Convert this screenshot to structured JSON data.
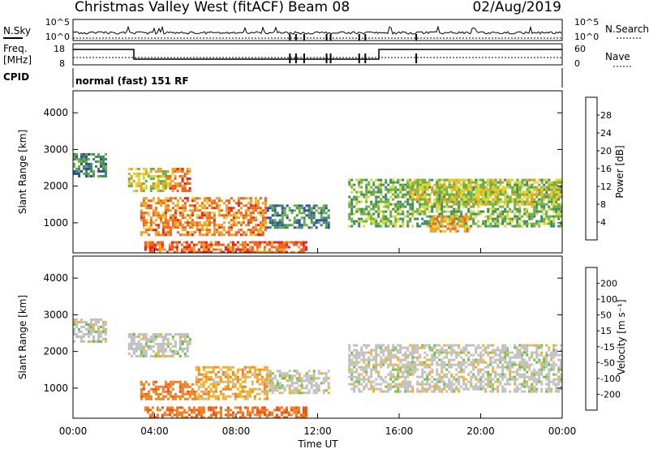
{
  "header": {
    "title": "Christmas Valley West (fitACF)",
    "beam": "Beam 08",
    "date": "02/Aug/2019"
  },
  "side_labels": {
    "nsky": "N.Sky",
    "freq_line1": "Freq.",
    "freq_line2": "[MHz]",
    "cpid": "CPID",
    "nsearch": "N.Search",
    "nave": "Nave"
  },
  "cpid_text": "normal (fast) 151 RF",
  "strip_ticks": {
    "noise_top": "10^5",
    "noise_bottom": "10^0",
    "freq_top": "18",
    "freq_bottom": "8",
    "nave_top": "60",
    "nave_bottom": "0"
  },
  "x_axis": {
    "label": "Time UT",
    "ticks": [
      "00:00",
      "04:00",
      "08:00",
      "12:00",
      "16:00",
      "20:00",
      "00:00"
    ]
  },
  "y_axis": {
    "label": "Slant Range [km]",
    "ticks": [
      "1000",
      "2000",
      "3000",
      "4000"
    ]
  },
  "power_scale": {
    "label": "Power [dB]",
    "ticks": [
      "4",
      "8",
      "12",
      "16",
      "20",
      "24",
      "28"
    ],
    "colors": [
      "#1a1aff",
      "#2c4aa8",
      "#3e8a60",
      "#6ab040",
      "#d8d830",
      "#f0a020",
      "#f06020",
      "#e82020"
    ]
  },
  "velocity_scale": {
    "label": "Velocity [m s⁻¹]",
    "ticks": [
      "200",
      "100",
      "50",
      "15",
      "-15",
      "-50",
      "-100",
      "-200"
    ],
    "colors": [
      "#2030b0",
      "#3070c0",
      "#2a8a50",
      "#70c040",
      "#c0c0c0",
      "#f0b020",
      "#f08020",
      "#f05010",
      "#e01010"
    ]
  },
  "chart_data": [
    {
      "type": "heatmap",
      "title": "Power",
      "xlabel": "Time UT",
      "ylabel": "Slant Range [km]",
      "xlim": [
        "00:00",
        "24:00"
      ],
      "ylim": [
        180,
        4600
      ],
      "zlabel": "Power [dB]",
      "zlim": [
        0,
        32
      ],
      "regions": [
        {
          "t": [
            0.0,
            1.6
          ],
          "r": [
            2300,
            2900
          ],
          "value": 10
        },
        {
          "t": [
            2.7,
            4.6
          ],
          "r": [
            1900,
            2500
          ],
          "value": 18
        },
        {
          "t": [
            4.6,
            5.7
          ],
          "r": [
            1900,
            2500
          ],
          "value": 24
        },
        {
          "t": [
            3.3,
            9.5
          ],
          "r": [
            700,
            1700
          ],
          "value": 24
        },
        {
          "t": [
            9.5,
            12.5
          ],
          "r": [
            900,
            1500
          ],
          "value": 10
        },
        {
          "t": [
            3.5,
            11.5
          ],
          "r": [
            200,
            500
          ],
          "value": 26
        },
        {
          "t": [
            13.5,
            24.0
          ],
          "r": [
            900,
            2200
          ],
          "value": 14
        },
        {
          "t": [
            16.5,
            24.0
          ],
          "r": [
            1500,
            2200
          ],
          "value": 18
        },
        {
          "t": [
            17.5,
            19.5
          ],
          "r": [
            800,
            1200
          ],
          "value": 22
        }
      ]
    },
    {
      "type": "heatmap",
      "title": "Velocity",
      "xlabel": "Time UT",
      "ylabel": "Slant Range [km]",
      "xlim": [
        "00:00",
        "24:00"
      ],
      "ylim": [
        180,
        4600
      ],
      "zlabel": "Velocity [m s-1]",
      "zlim": [
        -250,
        250
      ],
      "regions": [
        {
          "t": [
            0.0,
            1.6
          ],
          "r": [
            2300,
            2900
          ],
          "value": 0
        },
        {
          "t": [
            2.7,
            5.7
          ],
          "r": [
            1900,
            2500
          ],
          "value": 0
        },
        {
          "t": [
            3.3,
            6.0
          ],
          "r": [
            700,
            1200
          ],
          "value": -60
        },
        {
          "t": [
            6.0,
            9.5
          ],
          "r": [
            700,
            1600
          ],
          "value": -30
        },
        {
          "t": [
            9.5,
            12.5
          ],
          "r": [
            900,
            1500
          ],
          "value": 0
        },
        {
          "t": [
            3.5,
            11.5
          ],
          "r": [
            200,
            500
          ],
          "value": -70
        },
        {
          "t": [
            13.5,
            24.0
          ],
          "r": [
            900,
            2200
          ],
          "value": 0
        }
      ]
    }
  ]
}
